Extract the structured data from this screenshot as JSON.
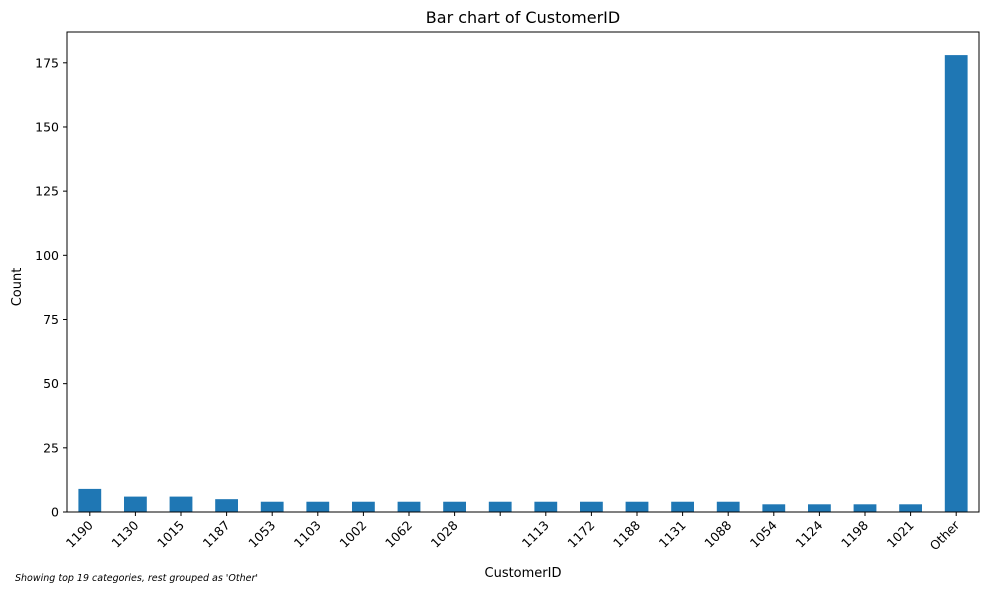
{
  "chart_data": {
    "type": "bar",
    "title": "Bar chart of CustomerID",
    "xlabel": "CustomerID",
    "ylabel": "Count",
    "categories": [
      "1190",
      "1130",
      "1015",
      "1187",
      "1053",
      "1103",
      "1002",
      "1062",
      "1028",
      "",
      "1113",
      "1172",
      "1188",
      "1131",
      "1088",
      "1054",
      "1124",
      "1198",
      "1021",
      "Other"
    ],
    "values": [
      9,
      6,
      6,
      5,
      4,
      4,
      4,
      4,
      4,
      4,
      4,
      4,
      4,
      4,
      4,
      3,
      3,
      3,
      3,
      178
    ],
    "ylim": [
      0,
      187
    ],
    "yticks": [
      0,
      25,
      50,
      75,
      100,
      125,
      150,
      175
    ],
    "bar_color": "#1f77b4",
    "grid": false,
    "legend": "none"
  },
  "footnote": "Showing top 19 categories, rest grouped as 'Other'"
}
